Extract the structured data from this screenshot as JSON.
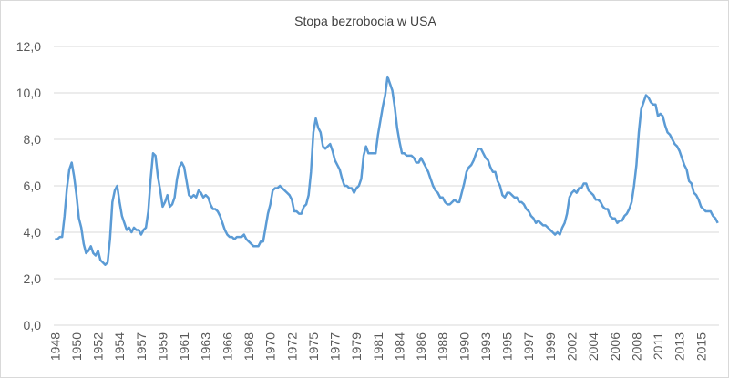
{
  "chart_data": {
    "type": "line",
    "title": "Stopa bezrobocia w USA",
    "categories": [
      "1948",
      null,
      null,
      null,
      null,
      null,
      null,
      null,
      null,
      "1950",
      null,
      null,
      null,
      null,
      null,
      null,
      null,
      null,
      "1952",
      null,
      null,
      null,
      null,
      null,
      null,
      null,
      null,
      "1954",
      null,
      null,
      null,
      null,
      null,
      null,
      null,
      null,
      "1957",
      null,
      null,
      null,
      null,
      null,
      null,
      null,
      null,
      "1959",
      null,
      null,
      null,
      null,
      null,
      null,
      null,
      null,
      "1961",
      null,
      null,
      null,
      null,
      null,
      null,
      null,
      null,
      "1963",
      null,
      null,
      null,
      null,
      null,
      null,
      null,
      null,
      "1966",
      null,
      null,
      null,
      null,
      null,
      null,
      null,
      null,
      "1968",
      null,
      null,
      null,
      null,
      null,
      null,
      null,
      null,
      "1970",
      null,
      null,
      null,
      null,
      null,
      null,
      null,
      null,
      "1972",
      null,
      null,
      null,
      null,
      null,
      null,
      null,
      null,
      "1975",
      null,
      null,
      null,
      null,
      null,
      null,
      null,
      null,
      "1977",
      null,
      null,
      null,
      null,
      null,
      null,
      null,
      null,
      "1979",
      null,
      null,
      null,
      null,
      null,
      null,
      null,
      null,
      "1981",
      null,
      null,
      null,
      null,
      null,
      null,
      null,
      null,
      "1984",
      null,
      null,
      null,
      null,
      null,
      null,
      null,
      null,
      "1986",
      null,
      null,
      null,
      null,
      null,
      null,
      null,
      null,
      "1988",
      null,
      null,
      null,
      null,
      null,
      null,
      null,
      null,
      "1990",
      null,
      null,
      null,
      null,
      null,
      null,
      null,
      null,
      "1993",
      null,
      null,
      null,
      null,
      null,
      null,
      null,
      null,
      "1995",
      null,
      null,
      null,
      null,
      null,
      null,
      null,
      null,
      "1997",
      null,
      null,
      null,
      null,
      null,
      null,
      null,
      null,
      "1999",
      null,
      null,
      null,
      null,
      null,
      null,
      null,
      null,
      "2002",
      null,
      null,
      null,
      null,
      null,
      null,
      null,
      null,
      "2004",
      null,
      null,
      null,
      null,
      null,
      null,
      null,
      null,
      "2006",
      null,
      null,
      null,
      null,
      null,
      null,
      null,
      null,
      "2008",
      null,
      null,
      null,
      null,
      null,
      null,
      null,
      null,
      "2011",
      null,
      null,
      null,
      null,
      null,
      null,
      null,
      null,
      "2013",
      null,
      null,
      null,
      null,
      null,
      null,
      null,
      null,
      "2015",
      null,
      null,
      null,
      null,
      null,
      null,
      null
    ],
    "series": [
      {
        "name": "Stopa bezrobocia",
        "color": "#5b9bd5",
        "values": [
          3.7,
          3.7,
          3.8,
          3.8,
          4.7,
          5.9,
          6.7,
          7.0,
          6.4,
          5.6,
          4.6,
          4.2,
          3.5,
          3.1,
          3.2,
          3.4,
          3.1,
          3.0,
          3.2,
          2.8,
          2.7,
          2.6,
          2.7,
          3.7,
          5.3,
          5.8,
          6.0,
          5.3,
          4.7,
          4.4,
          4.1,
          4.2,
          4.0,
          4.2,
          4.1,
          4.1,
          3.9,
          4.1,
          4.2,
          4.9,
          6.3,
          7.4,
          7.3,
          6.4,
          5.8,
          5.1,
          5.3,
          5.6,
          5.1,
          5.2,
          5.5,
          6.3,
          6.8,
          7.0,
          6.8,
          6.2,
          5.6,
          5.5,
          5.6,
          5.5,
          5.8,
          5.7,
          5.5,
          5.6,
          5.5,
          5.2,
          5.0,
          5.0,
          4.9,
          4.7,
          4.4,
          4.1,
          3.9,
          3.8,
          3.8,
          3.7,
          3.8,
          3.8,
          3.8,
          3.9,
          3.7,
          3.6,
          3.5,
          3.4,
          3.4,
          3.4,
          3.6,
          3.6,
          4.2,
          4.8,
          5.2,
          5.8,
          5.9,
          5.9,
          6.0,
          5.9,
          5.8,
          5.7,
          5.6,
          5.4,
          4.9,
          4.9,
          4.8,
          4.8,
          5.1,
          5.2,
          5.6,
          6.6,
          8.3,
          8.9,
          8.5,
          8.3,
          7.7,
          7.6,
          7.7,
          7.8,
          7.5,
          7.1,
          6.9,
          6.7,
          6.3,
          6.0,
          6.0,
          5.9,
          5.9,
          5.7,
          5.9,
          6.0,
          6.3,
          7.3,
          7.7,
          7.4,
          7.4,
          7.4,
          7.4,
          8.2,
          8.8,
          9.4,
          9.9,
          10.7,
          10.4,
          10.1,
          9.4,
          8.5,
          7.9,
          7.4,
          7.4,
          7.3,
          7.3,
          7.3,
          7.2,
          7.0,
          7.0,
          7.2,
          7.0,
          6.8,
          6.6,
          6.3,
          6.0,
          5.8,
          5.7,
          5.5,
          5.5,
          5.3,
          5.2,
          5.2,
          5.3,
          5.4,
          5.3,
          5.3,
          5.7,
          6.1,
          6.6,
          6.8,
          6.9,
          7.1,
          7.4,
          7.6,
          7.6,
          7.4,
          7.2,
          7.1,
          6.8,
          6.6,
          6.6,
          6.2,
          6.0,
          5.6,
          5.5,
          5.7,
          5.7,
          5.6,
          5.5,
          5.5,
          5.3,
          5.3,
          5.2,
          5.0,
          4.9,
          4.7,
          4.6,
          4.4,
          4.5,
          4.4,
          4.3,
          4.3,
          4.2,
          4.1,
          4.0,
          3.9,
          4.0,
          3.9,
          4.2,
          4.4,
          4.8,
          5.5,
          5.7,
          5.8,
          5.7,
          5.9,
          5.9,
          6.1,
          6.1,
          5.8,
          5.7,
          5.6,
          5.4,
          5.4,
          5.3,
          5.1,
          5.0,
          5.0,
          4.7,
          4.6,
          4.6,
          4.4,
          4.5,
          4.5,
          4.7,
          4.8,
          5.0,
          5.3,
          6.0,
          6.9,
          8.3,
          9.3,
          9.6,
          9.9,
          9.8,
          9.6,
          9.5,
          9.5,
          9.0,
          9.1,
          9.0,
          8.6,
          8.3,
          8.2,
          8.0,
          7.8,
          7.7,
          7.5,
          7.2,
          6.9,
          6.7,
          6.2,
          6.1,
          5.7,
          5.6,
          5.4,
          5.1,
          5.0,
          4.9,
          4.9,
          4.9,
          4.7,
          4.6,
          4.4
        ]
      }
    ],
    "ylim": [
      0,
      12
    ],
    "yticks": [
      {
        "value": 0,
        "label": "0,0"
      },
      {
        "value": 2,
        "label": "2,0"
      },
      {
        "value": 4,
        "label": "4,0"
      },
      {
        "value": 6,
        "label": "6,0"
      },
      {
        "value": 8,
        "label": "8,0"
      },
      {
        "value": 10,
        "label": "10,0"
      },
      {
        "value": 12,
        "label": "12,0"
      }
    ],
    "grid": true
  }
}
